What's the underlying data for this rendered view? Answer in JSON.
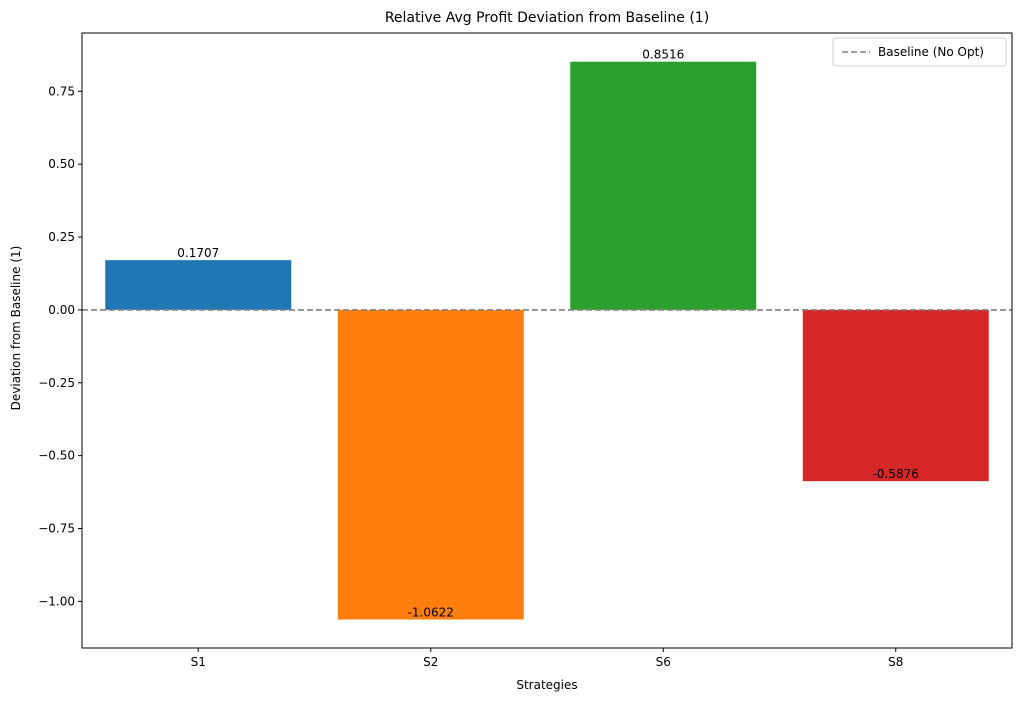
{
  "chart_data": {
    "type": "bar",
    "title": "Relative Avg Profit Deviation from Baseline (1)",
    "xlabel": "Strategies",
    "ylabel": "Deviation from Baseline (1)",
    "categories": [
      "S1",
      "S2",
      "S6",
      "S8"
    ],
    "values": [
      0.1707,
      -1.0622,
      0.8516,
      -0.5876
    ],
    "value_labels": [
      "0.1707",
      "-1.0622",
      "0.8516",
      "-0.5876"
    ],
    "colors": [
      "#1f77b4",
      "#ff7f0e",
      "#2ca02c",
      "#d62728"
    ],
    "ylim": [
      -1.16,
      0.95
    ],
    "yticks": [
      -1.0,
      -0.75,
      -0.5,
      -0.25,
      0.0,
      0.25,
      0.5,
      0.75
    ],
    "ytick_labels": [
      "−1.00",
      "−0.75",
      "−0.50",
      "−0.25",
      "0.00",
      "0.25",
      "0.50",
      "0.75"
    ],
    "baseline": {
      "value": 0,
      "label": "Baseline (No Opt)",
      "color": "#808080",
      "style": "dashed"
    },
    "legend": {
      "placement": "top-right",
      "entries": [
        "Baseline (No Opt)"
      ]
    },
    "grid": false
  }
}
